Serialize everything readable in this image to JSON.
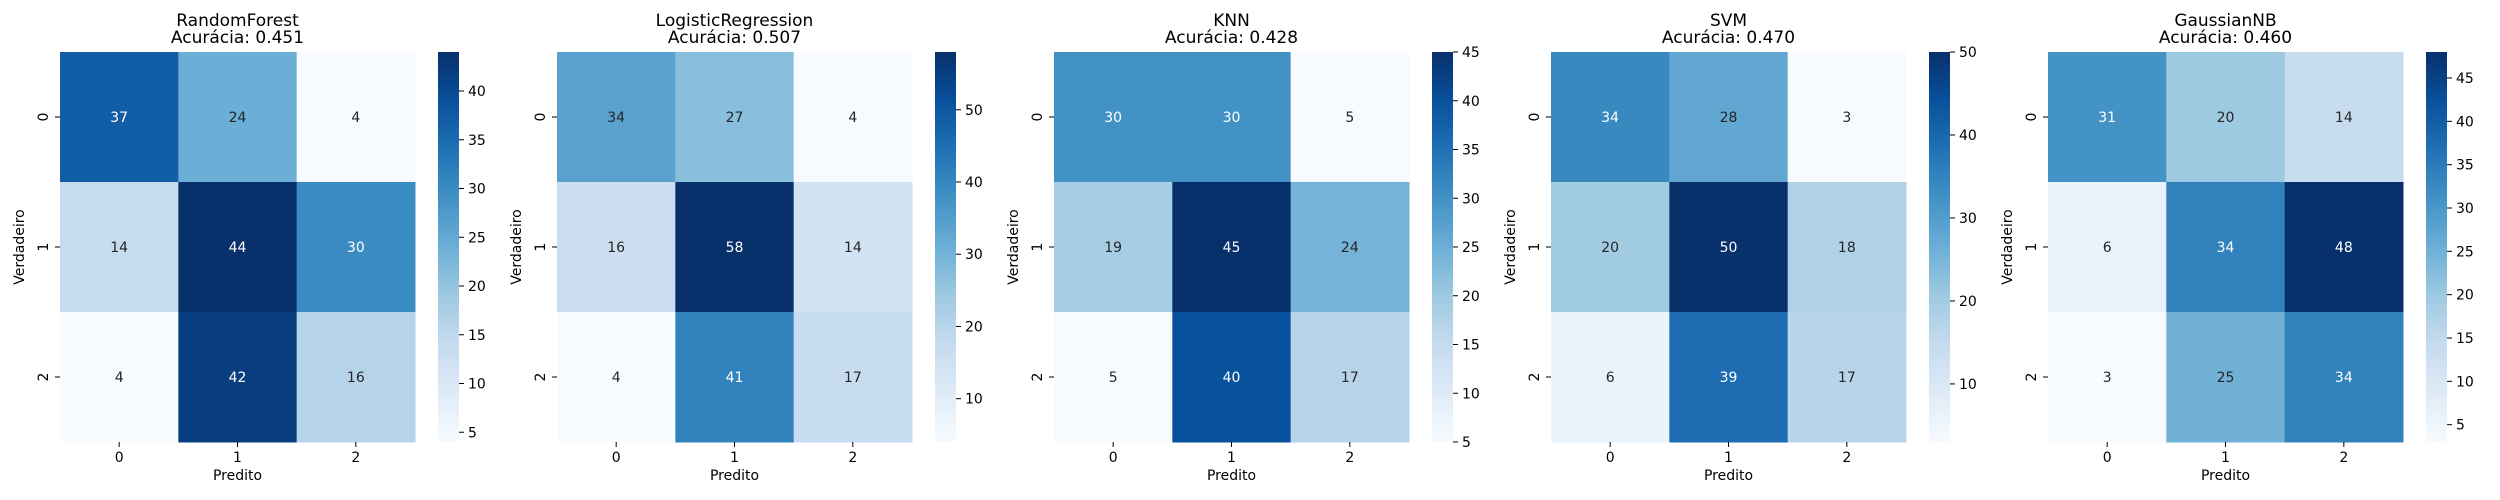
{
  "colormap": [
    "#f7fbff",
    "#deebf7",
    "#c6dbef",
    "#9ecae1",
    "#6baed6",
    "#4292c6",
    "#2171b5",
    "#08519c",
    "#08306b"
  ],
  "chart_data": [
    {
      "type": "heatmap",
      "title": "RandomForest",
      "subtitle": "Acurácia: 0.451",
      "xlabel": "Predito",
      "ylabel": "Verdadeiro",
      "x_categories": [
        "0",
        "1",
        "2"
      ],
      "y_categories": [
        "0",
        "1",
        "2"
      ],
      "values": [
        [
          37,
          24,
          4
        ],
        [
          14,
          44,
          30
        ],
        [
          4,
          42,
          16
        ]
      ],
      "colorbar": {
        "vmin": 4,
        "vmax": 44,
        "ticks": [
          5,
          10,
          15,
          20,
          25,
          30,
          35,
          40
        ]
      }
    },
    {
      "type": "heatmap",
      "title": "LogisticRegression",
      "subtitle": "Acurácia: 0.507",
      "xlabel": "Predito",
      "ylabel": "Verdadeiro",
      "x_categories": [
        "0",
        "1",
        "2"
      ],
      "y_categories": [
        "0",
        "1",
        "2"
      ],
      "values": [
        [
          34,
          27,
          4
        ],
        [
          16,
          58,
          14
        ],
        [
          4,
          41,
          17
        ]
      ],
      "colorbar": {
        "vmin": 4,
        "vmax": 58,
        "ticks": [
          10,
          20,
          30,
          40,
          50
        ]
      }
    },
    {
      "type": "heatmap",
      "title": "KNN",
      "subtitle": "Acurácia: 0.428",
      "xlabel": "Predito",
      "ylabel": "Verdadeiro",
      "x_categories": [
        "0",
        "1",
        "2"
      ],
      "y_categories": [
        "0",
        "1",
        "2"
      ],
      "values": [
        [
          30,
          30,
          5
        ],
        [
          19,
          45,
          24
        ],
        [
          5,
          40,
          17
        ]
      ],
      "colorbar": {
        "vmin": 5,
        "vmax": 45,
        "ticks": [
          5,
          10,
          15,
          20,
          25,
          30,
          35,
          40,
          45
        ]
      }
    },
    {
      "type": "heatmap",
      "title": "SVM",
      "subtitle": "Acurácia: 0.470",
      "xlabel": "Predito",
      "ylabel": "Verdadeiro",
      "x_categories": [
        "0",
        "1",
        "2"
      ],
      "y_categories": [
        "0",
        "1",
        "2"
      ],
      "values": [
        [
          34,
          28,
          3
        ],
        [
          20,
          50,
          18
        ],
        [
          6,
          39,
          17
        ]
      ],
      "colorbar": {
        "vmin": 3,
        "vmax": 50,
        "ticks": [
          10,
          20,
          30,
          40,
          50
        ]
      }
    },
    {
      "type": "heatmap",
      "title": "GaussianNB",
      "subtitle": "Acurácia: 0.460",
      "xlabel": "Predito",
      "ylabel": "Verdadeiro",
      "x_categories": [
        "0",
        "1",
        "2"
      ],
      "y_categories": [
        "0",
        "1",
        "2"
      ],
      "values": [
        [
          31,
          20,
          14
        ],
        [
          6,
          34,
          48
        ],
        [
          3,
          25,
          34
        ]
      ],
      "colorbar": {
        "vmin": 3,
        "vmax": 48,
        "ticks": [
          5,
          10,
          15,
          20,
          25,
          30,
          35,
          40,
          45
        ]
      }
    }
  ]
}
